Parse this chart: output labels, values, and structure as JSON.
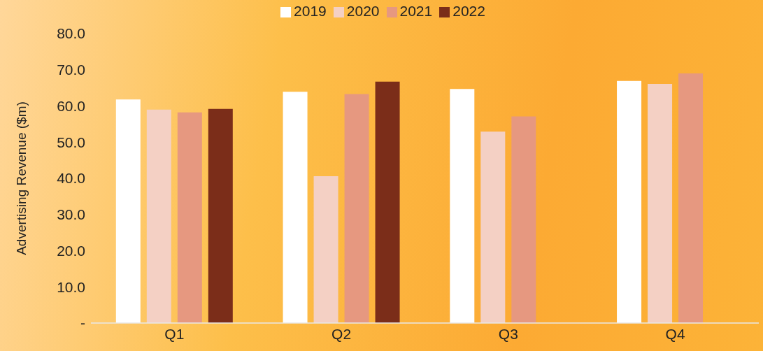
{
  "chart_data": {
    "type": "bar",
    "ylabel": "Advertising Revenue ($m)",
    "categories": [
      "Q1",
      "Q2",
      "Q3",
      "Q4"
    ],
    "series": [
      {
        "name": "2019",
        "color": "#ffffff",
        "values": [
          61.8,
          63.9,
          64.7,
          66.9
        ]
      },
      {
        "name": "2020",
        "color": "#f4d0c4",
        "values": [
          59.0,
          40.6,
          52.9,
          66.1
        ]
      },
      {
        "name": "2021",
        "color": "#e69880",
        "values": [
          58.2,
          63.3,
          57.1,
          69.0
        ]
      },
      {
        "name": "2022",
        "color": "#7b2d19",
        "values": [
          59.2,
          66.7,
          null,
          null
        ]
      }
    ],
    "ylim": [
      0,
      80
    ],
    "yticks": [
      {
        "value": 0,
        "label": "-"
      },
      {
        "value": 10,
        "label": "10.0"
      },
      {
        "value": 20,
        "label": "20.0"
      },
      {
        "value": 30,
        "label": "30.0"
      },
      {
        "value": 40,
        "label": "40.0"
      },
      {
        "value": 50,
        "label": "50.0"
      },
      {
        "value": 60,
        "label": "60.0"
      },
      {
        "value": 70,
        "label": "70.0"
      },
      {
        "value": 80,
        "label": "80.0"
      }
    ],
    "grid": false,
    "legend": "top"
  }
}
